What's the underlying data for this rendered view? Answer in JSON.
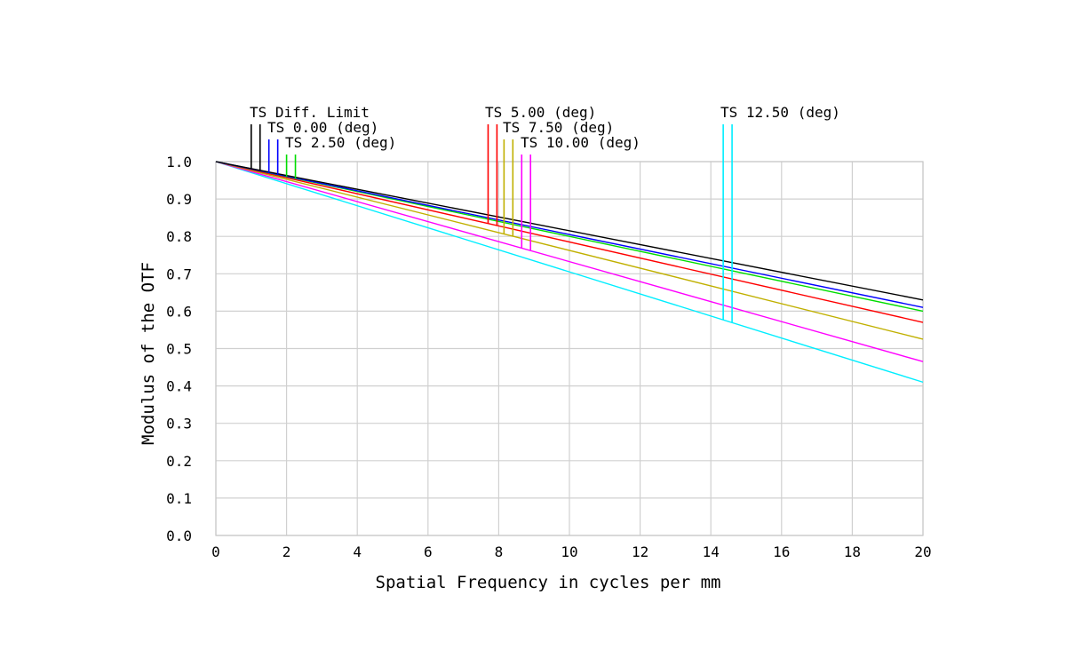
{
  "chart_data": {
    "type": "line",
    "xlabel": "Spatial Frequency in cycles per mm",
    "ylabel": "Modulus of the OTF",
    "xlim": [
      0,
      20
    ],
    "ylim": [
      0,
      1
    ],
    "x_ticks": [
      "0",
      "2",
      "4",
      "6",
      "8",
      "10",
      "12",
      "14",
      "16",
      "18",
      "20"
    ],
    "y_ticks": [
      "0.0",
      "0.1",
      "0.2",
      "0.3",
      "0.4",
      "0.5",
      "0.6",
      "0.7",
      "0.8",
      "0.9",
      "1.0"
    ],
    "grid": true,
    "legend_position": "top",
    "series": [
      {
        "name": "TS Diff. Limit",
        "color": "#000000",
        "marker_x": [
          1.0,
          1.25
        ],
        "x": [
          0,
          20
        ],
        "y": [
          1.0,
          0.63
        ]
      },
      {
        "name": "TS 0.00 (deg)",
        "color": "#0000ff",
        "marker_x": [
          1.5,
          1.75
        ],
        "x": [
          0,
          20
        ],
        "y": [
          1.0,
          0.61
        ]
      },
      {
        "name": "TS 2.50 (deg)",
        "color": "#00dd00",
        "marker_x": [
          2.0,
          2.25
        ],
        "x": [
          0,
          20
        ],
        "y": [
          1.0,
          0.6
        ]
      },
      {
        "name": "TS 5.00 (deg)",
        "color": "#ff0000",
        "marker_x": [
          7.7,
          7.95
        ],
        "x": [
          0,
          20
        ],
        "y": [
          1.0,
          0.57
        ]
      },
      {
        "name": "TS 7.50 (deg)",
        "color": "#c0b000",
        "marker_x": [
          8.15,
          8.4
        ],
        "x": [
          0,
          20
        ],
        "y": [
          1.0,
          0.525
        ]
      },
      {
        "name": "TS 10.00 (deg)",
        "color": "#ff00ff",
        "marker_x": [
          8.65,
          8.9
        ],
        "x": [
          0,
          20
        ],
        "y": [
          1.0,
          0.465
        ]
      },
      {
        "name": "TS 12.50 (deg)",
        "color": "#00eeff",
        "marker_x": [
          14.35,
          14.6
        ],
        "x": [
          0,
          20
        ],
        "y": [
          1.0,
          0.41
        ]
      }
    ]
  }
}
